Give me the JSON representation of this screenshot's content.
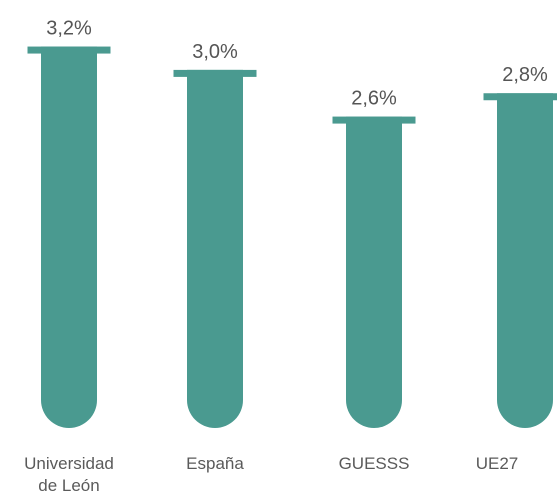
{
  "chart_data": {
    "type": "bar",
    "categories": [
      "Universidad de León",
      "España",
      "GUESSS",
      "UE27"
    ],
    "values": [
      3.2,
      3.0,
      2.6,
      2.8
    ],
    "value_labels": [
      "3,2%",
      "3,0%",
      "2,6%",
      "2,8%"
    ],
    "color": "#4a9a90"
  }
}
